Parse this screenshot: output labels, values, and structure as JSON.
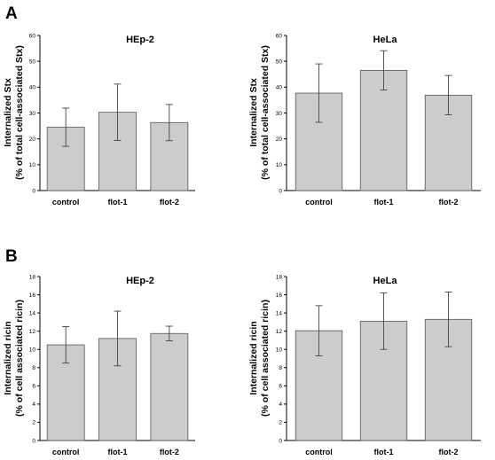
{
  "panels": [
    {
      "letter": "A"
    },
    {
      "letter": "B"
    }
  ],
  "chart_data": [
    {
      "type": "bar",
      "panel": "A",
      "title": "HEp-2",
      "ylabel_line1": "Internalized Stx",
      "ylabel_line2": "(% of total cell-associated Stx)",
      "categories": [
        "control",
        "flot-1",
        "flot-2"
      ],
      "values": [
        24.5,
        30.3,
        26.3
      ],
      "errors": [
        7.4,
        10.9,
        7.0
      ],
      "ylim": [
        0,
        60
      ],
      "yticks": [
        "0",
        "10",
        "20",
        "30",
        "40",
        "50",
        "60"
      ],
      "bar_color": "#cccccc",
      "grid": false
    },
    {
      "type": "bar",
      "panel": "A",
      "title": "HeLa",
      "ylabel_line1": "Internalized Stx",
      "ylabel_line2": "(% of total cell-associated Stx)",
      "categories": [
        "control",
        "flot-1",
        "flot-2"
      ],
      "values": [
        37.7,
        46.5,
        36.9
      ],
      "errors": [
        11.3,
        7.6,
        7.6
      ],
      "ylim": [
        0,
        60
      ],
      "yticks": [
        "0",
        "10",
        "20",
        "30",
        "40",
        "50",
        "60"
      ],
      "bar_color": "#cccccc",
      "grid": false
    },
    {
      "type": "bar",
      "panel": "B",
      "title": "HEp-2",
      "ylabel_line1": "Internalized ricin",
      "ylabel_line2": "(% of cell associated ricin)",
      "categories": [
        "control",
        "flot-1",
        "flot-2"
      ],
      "values": [
        10.5,
        11.2,
        11.75
      ],
      "errors": [
        2.0,
        3.0,
        0.8
      ],
      "ylim": [
        0,
        18
      ],
      "yticks": [
        "0",
        "2",
        "4",
        "6",
        "8",
        "10",
        "12",
        "14",
        "16",
        "18"
      ],
      "bar_color": "#cccccc",
      "grid": false
    },
    {
      "type": "bar",
      "panel": "B",
      "title": "HeLa",
      "ylabel_line1": "Internalized ricin",
      "ylabel_line2": "(% of cell associated ricin)",
      "categories": [
        "control",
        "flot-1",
        "flot-2"
      ],
      "values": [
        12.05,
        13.1,
        13.3
      ],
      "errors": [
        2.75,
        3.1,
        3.0
      ],
      "ylim": [
        0,
        18
      ],
      "yticks": [
        "0",
        "2",
        "4",
        "6",
        "8",
        "10",
        "12",
        "14",
        "16",
        "18"
      ],
      "bar_color": "#cccccc",
      "grid": false
    }
  ]
}
